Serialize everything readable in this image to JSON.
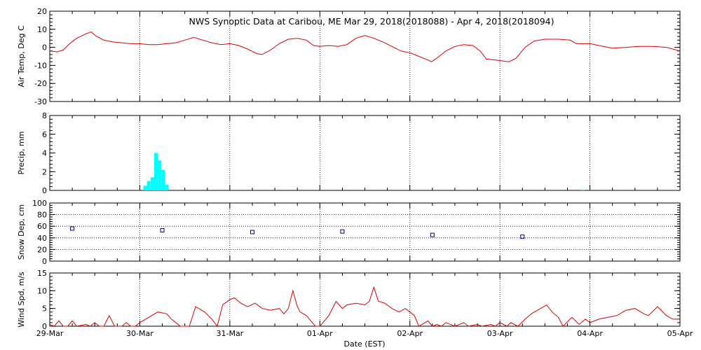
{
  "chart_data": {
    "title": "NWS Synoptic Data at Caribou, ME   Mar 29, 2018(2018088) - Apr  4, 2018(2018094)",
    "xlabel": "Date (EST)",
    "x_ticks": [
      "29-Mar",
      "30-Mar",
      "31-Mar",
      "01-Apr",
      "02-Apr",
      "03-Apr",
      "04-Apr",
      "05-Apr"
    ],
    "x_range_days": [
      0,
      7
    ],
    "grid": "dotted vertical at day boundaries",
    "panels": [
      {
        "type": "line",
        "ylabel": "Air Temp, Deg C",
        "ylim": [
          -30,
          20
        ],
        "yticks": [
          "20",
          "10",
          "0",
          "-10",
          "-20",
          "-30"
        ],
        "color": "#dd0000",
        "points_day_value": [
          [
            0.0,
            -2
          ],
          [
            0.08,
            -2.5
          ],
          [
            0.15,
            -1.5
          ],
          [
            0.22,
            2
          ],
          [
            0.3,
            5
          ],
          [
            0.4,
            7.5
          ],
          [
            0.46,
            8.5
          ],
          [
            0.52,
            6
          ],
          [
            0.6,
            4
          ],
          [
            0.7,
            3
          ],
          [
            0.8,
            2.5
          ],
          [
            0.9,
            2
          ],
          [
            1.0,
            2
          ],
          [
            1.1,
            1.5
          ],
          [
            1.2,
            1.5
          ],
          [
            1.3,
            2
          ],
          [
            1.4,
            2.5
          ],
          [
            1.5,
            4
          ],
          [
            1.6,
            5.5
          ],
          [
            1.7,
            4
          ],
          [
            1.8,
            2.5
          ],
          [
            1.9,
            1.5
          ],
          [
            2.0,
            2
          ],
          [
            2.1,
            1
          ],
          [
            2.2,
            -1
          ],
          [
            2.3,
            -3.5
          ],
          [
            2.36,
            -4
          ],
          [
            2.45,
            -1.5
          ],
          [
            2.55,
            2
          ],
          [
            2.65,
            4.5
          ],
          [
            2.75,
            5
          ],
          [
            2.85,
            4
          ],
          [
            2.93,
            1
          ],
          [
            3.0,
            0.5
          ],
          [
            3.1,
            1
          ],
          [
            3.2,
            0.5
          ],
          [
            3.3,
            1.5
          ],
          [
            3.4,
            5
          ],
          [
            3.5,
            6.5
          ],
          [
            3.6,
            5
          ],
          [
            3.7,
            3
          ],
          [
            3.8,
            0.5
          ],
          [
            3.9,
            -2
          ],
          [
            4.0,
            -3
          ],
          [
            4.1,
            -5
          ],
          [
            4.2,
            -7
          ],
          [
            4.24,
            -8
          ],
          [
            4.3,
            -6
          ],
          [
            4.4,
            -2
          ],
          [
            4.5,
            0.5
          ],
          [
            4.6,
            1.5
          ],
          [
            4.7,
            1
          ],
          [
            4.78,
            -2
          ],
          [
            4.85,
            -6.5
          ],
          [
            4.95,
            -7
          ],
          [
            5.1,
            -8
          ],
          [
            5.18,
            -6
          ],
          [
            5.28,
            0
          ],
          [
            5.38,
            3.5
          ],
          [
            5.5,
            4.5
          ],
          [
            5.65,
            4.5
          ],
          [
            5.78,
            4
          ],
          [
            5.85,
            2
          ],
          [
            6.0,
            2
          ],
          [
            6.1,
            1
          ],
          [
            6.25,
            -0.5
          ],
          [
            6.4,
            0
          ],
          [
            6.55,
            0.5
          ],
          [
            6.7,
            0.5
          ],
          [
            6.85,
            0
          ],
          [
            7.0,
            -2
          ]
        ]
      },
      {
        "type": "bar",
        "ylabel": "Precip, mm",
        "ylim": [
          0,
          8
        ],
        "yticks": [
          "8",
          "6",
          "4",
          "2",
          "0"
        ],
        "color": "#00ffff",
        "bars_day_value": [
          [
            1.04,
            0.5
          ],
          [
            1.08,
            1.0
          ],
          [
            1.12,
            1.4
          ],
          [
            1.16,
            4.0
          ],
          [
            1.2,
            3.2
          ],
          [
            1.24,
            2.2
          ],
          [
            1.28,
            0.6
          ],
          [
            5.9,
            0.1
          ]
        ],
        "bar_width_days": 0.04
      },
      {
        "type": "scatter",
        "ylabel": "Snow Dep, cm",
        "ylim": [
          0,
          100
        ],
        "yticks": [
          "100",
          "80",
          "60",
          "40",
          "20",
          "0"
        ],
        "color": "#00008b",
        "points_day_value": [
          [
            0.25,
            56
          ],
          [
            1.25,
            53
          ],
          [
            2.25,
            50
          ],
          [
            3.25,
            51
          ],
          [
            4.25,
            45
          ],
          [
            5.25,
            42
          ]
        ],
        "grid": "dotted horizontal at tick marks"
      },
      {
        "type": "line",
        "ylabel": "Wind Spd, m/s",
        "ylim": [
          0,
          15
        ],
        "yticks": [
          "15",
          "10",
          "5",
          "0"
        ],
        "color": "#dd0000",
        "points_day_value": [
          [
            0.0,
            0.5
          ],
          [
            0.05,
            0
          ],
          [
            0.1,
            1.5
          ],
          [
            0.15,
            0
          ],
          [
            0.2,
            0
          ],
          [
            0.25,
            1.5
          ],
          [
            0.3,
            0
          ],
          [
            0.4,
            0.5
          ],
          [
            0.45,
            0
          ],
          [
            0.5,
            1
          ],
          [
            0.55,
            0
          ],
          [
            0.6,
            0
          ],
          [
            0.66,
            3
          ],
          [
            0.72,
            0
          ],
          [
            0.8,
            0
          ],
          [
            0.85,
            1
          ],
          [
            0.9,
            0
          ],
          [
            0.95,
            0
          ],
          [
            1.0,
            1
          ],
          [
            1.1,
            2.5
          ],
          [
            1.2,
            4
          ],
          [
            1.3,
            3.5
          ],
          [
            1.35,
            2
          ],
          [
            1.45,
            0
          ],
          [
            1.55,
            0
          ],
          [
            1.62,
            5.5
          ],
          [
            1.72,
            4
          ],
          [
            1.8,
            2
          ],
          [
            1.86,
            0
          ],
          [
            1.92,
            6
          ],
          [
            2.0,
            7.5
          ],
          [
            2.05,
            8
          ],
          [
            2.12,
            6.5
          ],
          [
            2.2,
            5.5
          ],
          [
            2.28,
            6.5
          ],
          [
            2.36,
            5
          ],
          [
            2.45,
            4.5
          ],
          [
            2.55,
            5
          ],
          [
            2.6,
            3.5
          ],
          [
            2.65,
            5
          ],
          [
            2.7,
            10
          ],
          [
            2.75,
            5.5
          ],
          [
            2.78,
            4
          ],
          [
            2.85,
            3
          ],
          [
            2.95,
            0
          ],
          [
            3.0,
            0
          ],
          [
            3.1,
            3
          ],
          [
            3.18,
            7
          ],
          [
            3.25,
            5
          ],
          [
            3.3,
            6
          ],
          [
            3.4,
            6.5
          ],
          [
            3.5,
            6
          ],
          [
            3.55,
            7
          ],
          [
            3.6,
            11
          ],
          [
            3.65,
            7
          ],
          [
            3.72,
            6.5
          ],
          [
            3.8,
            5
          ],
          [
            3.88,
            4
          ],
          [
            3.95,
            5
          ],
          [
            4.0,
            4
          ],
          [
            4.05,
            3
          ],
          [
            4.1,
            0
          ],
          [
            4.2,
            1.5
          ],
          [
            4.25,
            0
          ],
          [
            4.3,
            0.5
          ],
          [
            4.35,
            0
          ],
          [
            4.4,
            1
          ],
          [
            4.5,
            0
          ],
          [
            4.6,
            1
          ],
          [
            4.65,
            0
          ],
          [
            4.75,
            0.5
          ],
          [
            4.8,
            0
          ],
          [
            4.9,
            0.5
          ],
          [
            4.95,
            0
          ],
          [
            5.0,
            1
          ],
          [
            5.08,
            0
          ],
          [
            5.12,
            1
          ],
          [
            5.2,
            0
          ],
          [
            5.28,
            2
          ],
          [
            5.35,
            3.5
          ],
          [
            5.45,
            5
          ],
          [
            5.52,
            6
          ],
          [
            5.58,
            4
          ],
          [
            5.65,
            2.5
          ],
          [
            5.7,
            0
          ],
          [
            5.8,
            2.5
          ],
          [
            5.88,
            0.5
          ],
          [
            5.95,
            2
          ],
          [
            6.0,
            1
          ],
          [
            6.1,
            2
          ],
          [
            6.2,
            2.5
          ],
          [
            6.3,
            3
          ],
          [
            6.4,
            4.5
          ],
          [
            6.5,
            5
          ],
          [
            6.6,
            3.5
          ],
          [
            6.65,
            3
          ],
          [
            6.75,
            5.5
          ],
          [
            6.85,
            3
          ],
          [
            6.92,
            2
          ],
          [
            7.0,
            2
          ]
        ]
      }
    ]
  }
}
